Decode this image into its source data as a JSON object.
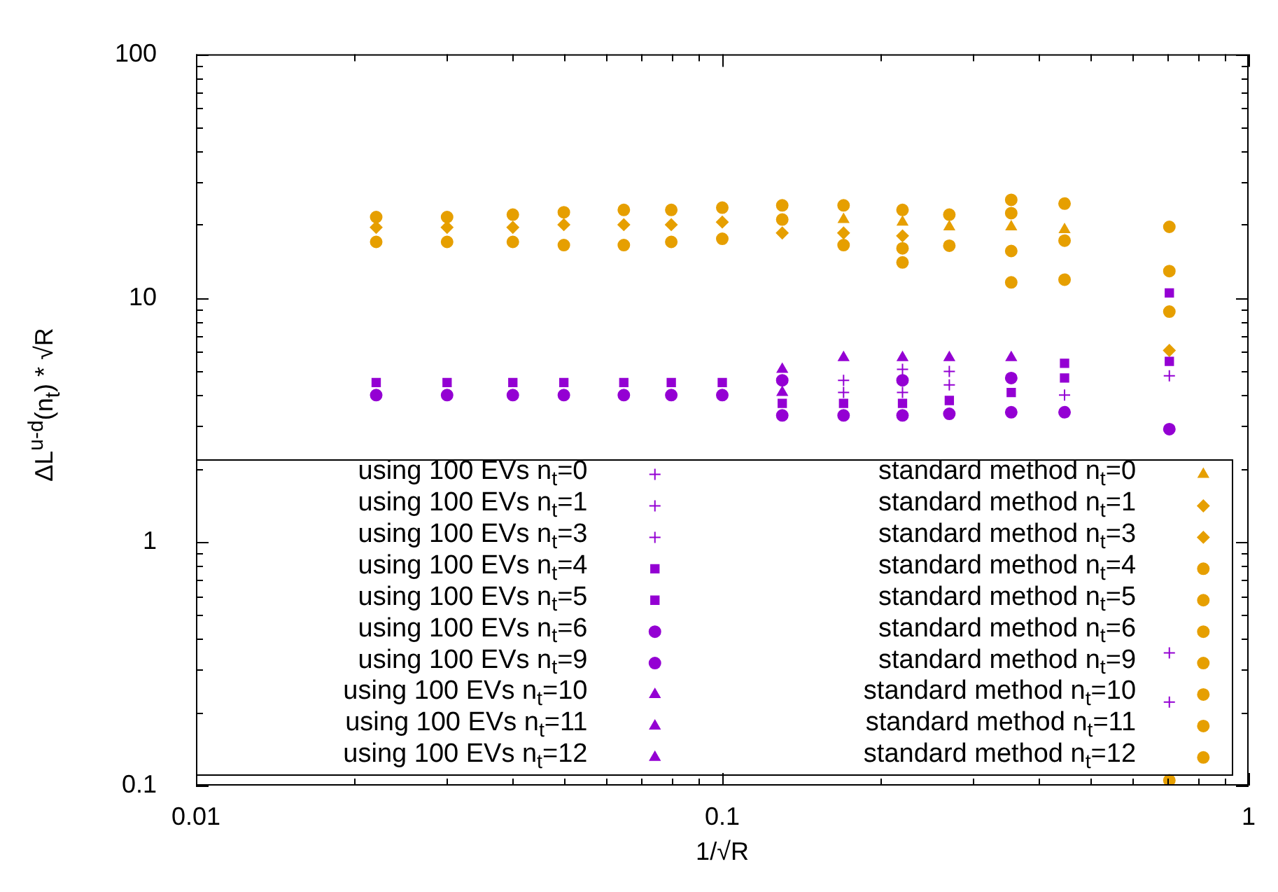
{
  "chart_data": {
    "type": "scatter",
    "xlabel": "1/√R",
    "ylabel": "ΔL$^{u-d}$(n$_{t}$) * √R",
    "x": [
      0.022,
      0.03,
      0.04,
      0.05,
      0.065,
      0.08,
      0.1,
      0.13,
      0.17,
      0.22,
      0.27,
      0.354,
      0.447,
      0.707
    ],
    "series": [
      {
        "name": "using 100 EVs n$_{t}$=0",
        "color": "#9400d3",
        "marker": "cross",
        "values": [
          null,
          null,
          null,
          null,
          null,
          null,
          null,
          null,
          null,
          5.1,
          null,
          null,
          null,
          4.8
        ]
      },
      {
        "name": "using 100 EVs n$_{t}$=1",
        "color": "#9400d3",
        "marker": "cross",
        "values": [
          null,
          null,
          null,
          null,
          null,
          null,
          null,
          null,
          4.1,
          4.1,
          4.4,
          null,
          4.0,
          0.22
        ]
      },
      {
        "name": "using 100 EVs n$_{t}$=3",
        "color": "#9400d3",
        "marker": "cross",
        "values": [
          null,
          null,
          null,
          null,
          null,
          null,
          null,
          null,
          4.6,
          null,
          5.0,
          null,
          null,
          0.35
        ]
      },
      {
        "name": "using 100 EVs n$_{t}$=4",
        "color": "#9400d3",
        "marker": "square",
        "values": [
          null,
          null,
          null,
          null,
          null,
          null,
          null,
          null,
          null,
          null,
          null,
          null,
          4.7,
          5.5
        ]
      },
      {
        "name": "using 100 EVs n$_{t}$=5",
        "color": "#9400d3",
        "marker": "square",
        "values": [
          4.5,
          4.5,
          4.5,
          4.5,
          4.5,
          4.5,
          4.5,
          3.7,
          3.7,
          3.7,
          3.8,
          4.1,
          5.4,
          10.5
        ]
      },
      {
        "name": "using 100 EVs n$_{t}$=6",
        "color": "#9400d3",
        "marker": "circle",
        "values": [
          null,
          null,
          null,
          null,
          null,
          null,
          null,
          4.6,
          null,
          4.6,
          null,
          4.7,
          null,
          null
        ]
      },
      {
        "name": "using 100 EVs n$_{t}$=9",
        "color": "#9400d3",
        "marker": "circle",
        "values": [
          4.0,
          4.0,
          4.0,
          4.0,
          4.0,
          4.0,
          4.0,
          3.3,
          3.3,
          3.3,
          3.35,
          3.4,
          3.4,
          2.9
        ]
      },
      {
        "name": "using 100 EVs n$_{t}$=10",
        "color": "#9400d3",
        "marker": "triangle",
        "values": [
          null,
          null,
          null,
          null,
          null,
          null,
          null,
          5.1,
          5.7,
          5.7,
          5.7,
          5.7,
          null,
          null
        ]
      },
      {
        "name": "using 100 EVs n$_{t}$=11",
        "color": "#9400d3",
        "marker": "triangle",
        "values": [
          null,
          null,
          null,
          null,
          null,
          null,
          null,
          4.1,
          null,
          null,
          null,
          null,
          null,
          null
        ]
      },
      {
        "name": "using 100 EVs n$_{t}$=12",
        "color": "#9400d3",
        "marker": "triangle",
        "values": [
          null,
          null,
          null,
          null,
          null,
          null,
          null,
          null,
          null,
          null,
          null,
          null,
          null,
          null
        ]
      },
      {
        "name": "standard method n$_{t}$=0",
        "color": "#e69f00",
        "marker": "triangle",
        "values": [
          null,
          null,
          null,
          null,
          null,
          null,
          null,
          null,
          21,
          20.5,
          19.6,
          19.6,
          19.1,
          null
        ]
      },
      {
        "name": "standard method n$_{t}$=1",
        "color": "#e69f00",
        "marker": "diamond",
        "values": [
          null,
          null,
          null,
          null,
          null,
          null,
          null,
          null,
          null,
          null,
          null,
          null,
          null,
          6.1
        ]
      },
      {
        "name": "standard method n$_{t}$=3",
        "color": "#e69f00",
        "marker": "diamond",
        "values": [
          19.5,
          19.5,
          19.5,
          20,
          20,
          20,
          20.5,
          18.5,
          18.5,
          18,
          null,
          null,
          null,
          null
        ]
      },
      {
        "name": "standard method n$_{t}$=4",
        "color": "#e69f00",
        "marker": "circle",
        "values": [
          21.5,
          21.5,
          22,
          22.5,
          23,
          23,
          23.5,
          21,
          null,
          null,
          null,
          null,
          null,
          null
        ]
      },
      {
        "name": "standard method n$_{t}$=5",
        "color": "#e69f00",
        "marker": "circle",
        "values": [
          null,
          null,
          null,
          null,
          null,
          null,
          null,
          null,
          null,
          16,
          16.4,
          15.6,
          17.2,
          19.6
        ]
      },
      {
        "name": "standard method n$_{t}$=6",
        "color": "#e69f00",
        "marker": "circle",
        "values": [
          17,
          17,
          17,
          16.5,
          16.5,
          17,
          17.5,
          24,
          24,
          23,
          22,
          25.3,
          24.4,
          null
        ]
      },
      {
        "name": "standard method n$_{t}$=9",
        "color": "#e69f00",
        "marker": "circle",
        "values": [
          null,
          null,
          null,
          null,
          null,
          null,
          null,
          null,
          null,
          null,
          null,
          22.3,
          null,
          null
        ]
      },
      {
        "name": "standard method n$_{t}$=10",
        "color": "#e69f00",
        "marker": "circle",
        "values": [
          null,
          null,
          null,
          null,
          null,
          null,
          null,
          null,
          null,
          null,
          null,
          null,
          null,
          8.8
        ]
      },
      {
        "name": "standard method n$_{t}$=11",
        "color": "#e69f00",
        "marker": "circle",
        "values": [
          null,
          null,
          null,
          null,
          null,
          null,
          null,
          null,
          null,
          null,
          null,
          null,
          null,
          12.9
        ]
      },
      {
        "name": "standard method n$_{t}$=12",
        "color": "#e69f00",
        "marker": "circle",
        "values": [
          null,
          null,
          null,
          null,
          null,
          null,
          null,
          null,
          16.5,
          14,
          null,
          11.6,
          11.9,
          0.105
        ]
      }
    ],
    "xlim": [
      0.01,
      1
    ],
    "xticks": [
      0.01,
      {
        "value": 0.02,
        "label": null
      },
      {
        "value": 0.03,
        "label": null
      },
      {
        "value": 0.04,
        "label": null
      },
      {
        "value": 0.05,
        "label": null
      },
      {
        "value": 0.06,
        "label": null
      },
      {
        "value": 0.07,
        "label": null
      },
      {
        "value": 0.08,
        "label": null
      },
      {
        "value": 0.09,
        "label": null
      },
      0.1,
      {
        "value": 0.2,
        "label": null
      },
      {
        "value": 0.3,
        "label": null
      },
      {
        "value": 0.4,
        "label": null
      },
      {
        "value": 0.5,
        "label": null
      },
      {
        "value": 0.6,
        "label": null
      },
      {
        "value": 0.7,
        "label": null
      },
      {
        "value": 0.8,
        "label": null
      },
      {
        "value": 0.9,
        "label": null
      },
      1
    ],
    "ylim": [
      0.1,
      100
    ],
    "yticks": [
      0.1,
      {
        "value": 0.2,
        "label": null
      },
      {
        "value": 0.3,
        "label": null
      },
      {
        "value": 0.4,
        "label": null
      },
      {
        "value": 0.5,
        "label": null
      },
      {
        "value": 0.6,
        "label": null
      },
      {
        "value": 0.7,
        "label": null
      },
      {
        "value": 0.8,
        "label": null
      },
      {
        "value": 0.9,
        "label": null
      },
      1,
      {
        "value": 2,
        "label": null
      },
      {
        "value": 3,
        "label": null
      },
      {
        "value": 4,
        "label": null
      },
      {
        "value": 5,
        "label": null
      },
      {
        "value": 6,
        "label": null
      },
      {
        "value": 7,
        "label": null
      },
      {
        "value": 8,
        "label": null
      },
      {
        "value": 9,
        "label": null
      },
      10,
      {
        "value": 20,
        "label": null
      },
      {
        "value": 30,
        "label": null
      },
      {
        "value": 40,
        "label": null
      },
      {
        "value": 50,
        "label": null
      },
      {
        "value": 60,
        "label": null
      },
      {
        "value": 70,
        "label": null
      },
      {
        "value": 80,
        "label": null
      },
      {
        "value": 90,
        "label": null
      },
      100
    ],
    "log": "xy",
    "grid": false,
    "legend": "bottom"
  }
}
